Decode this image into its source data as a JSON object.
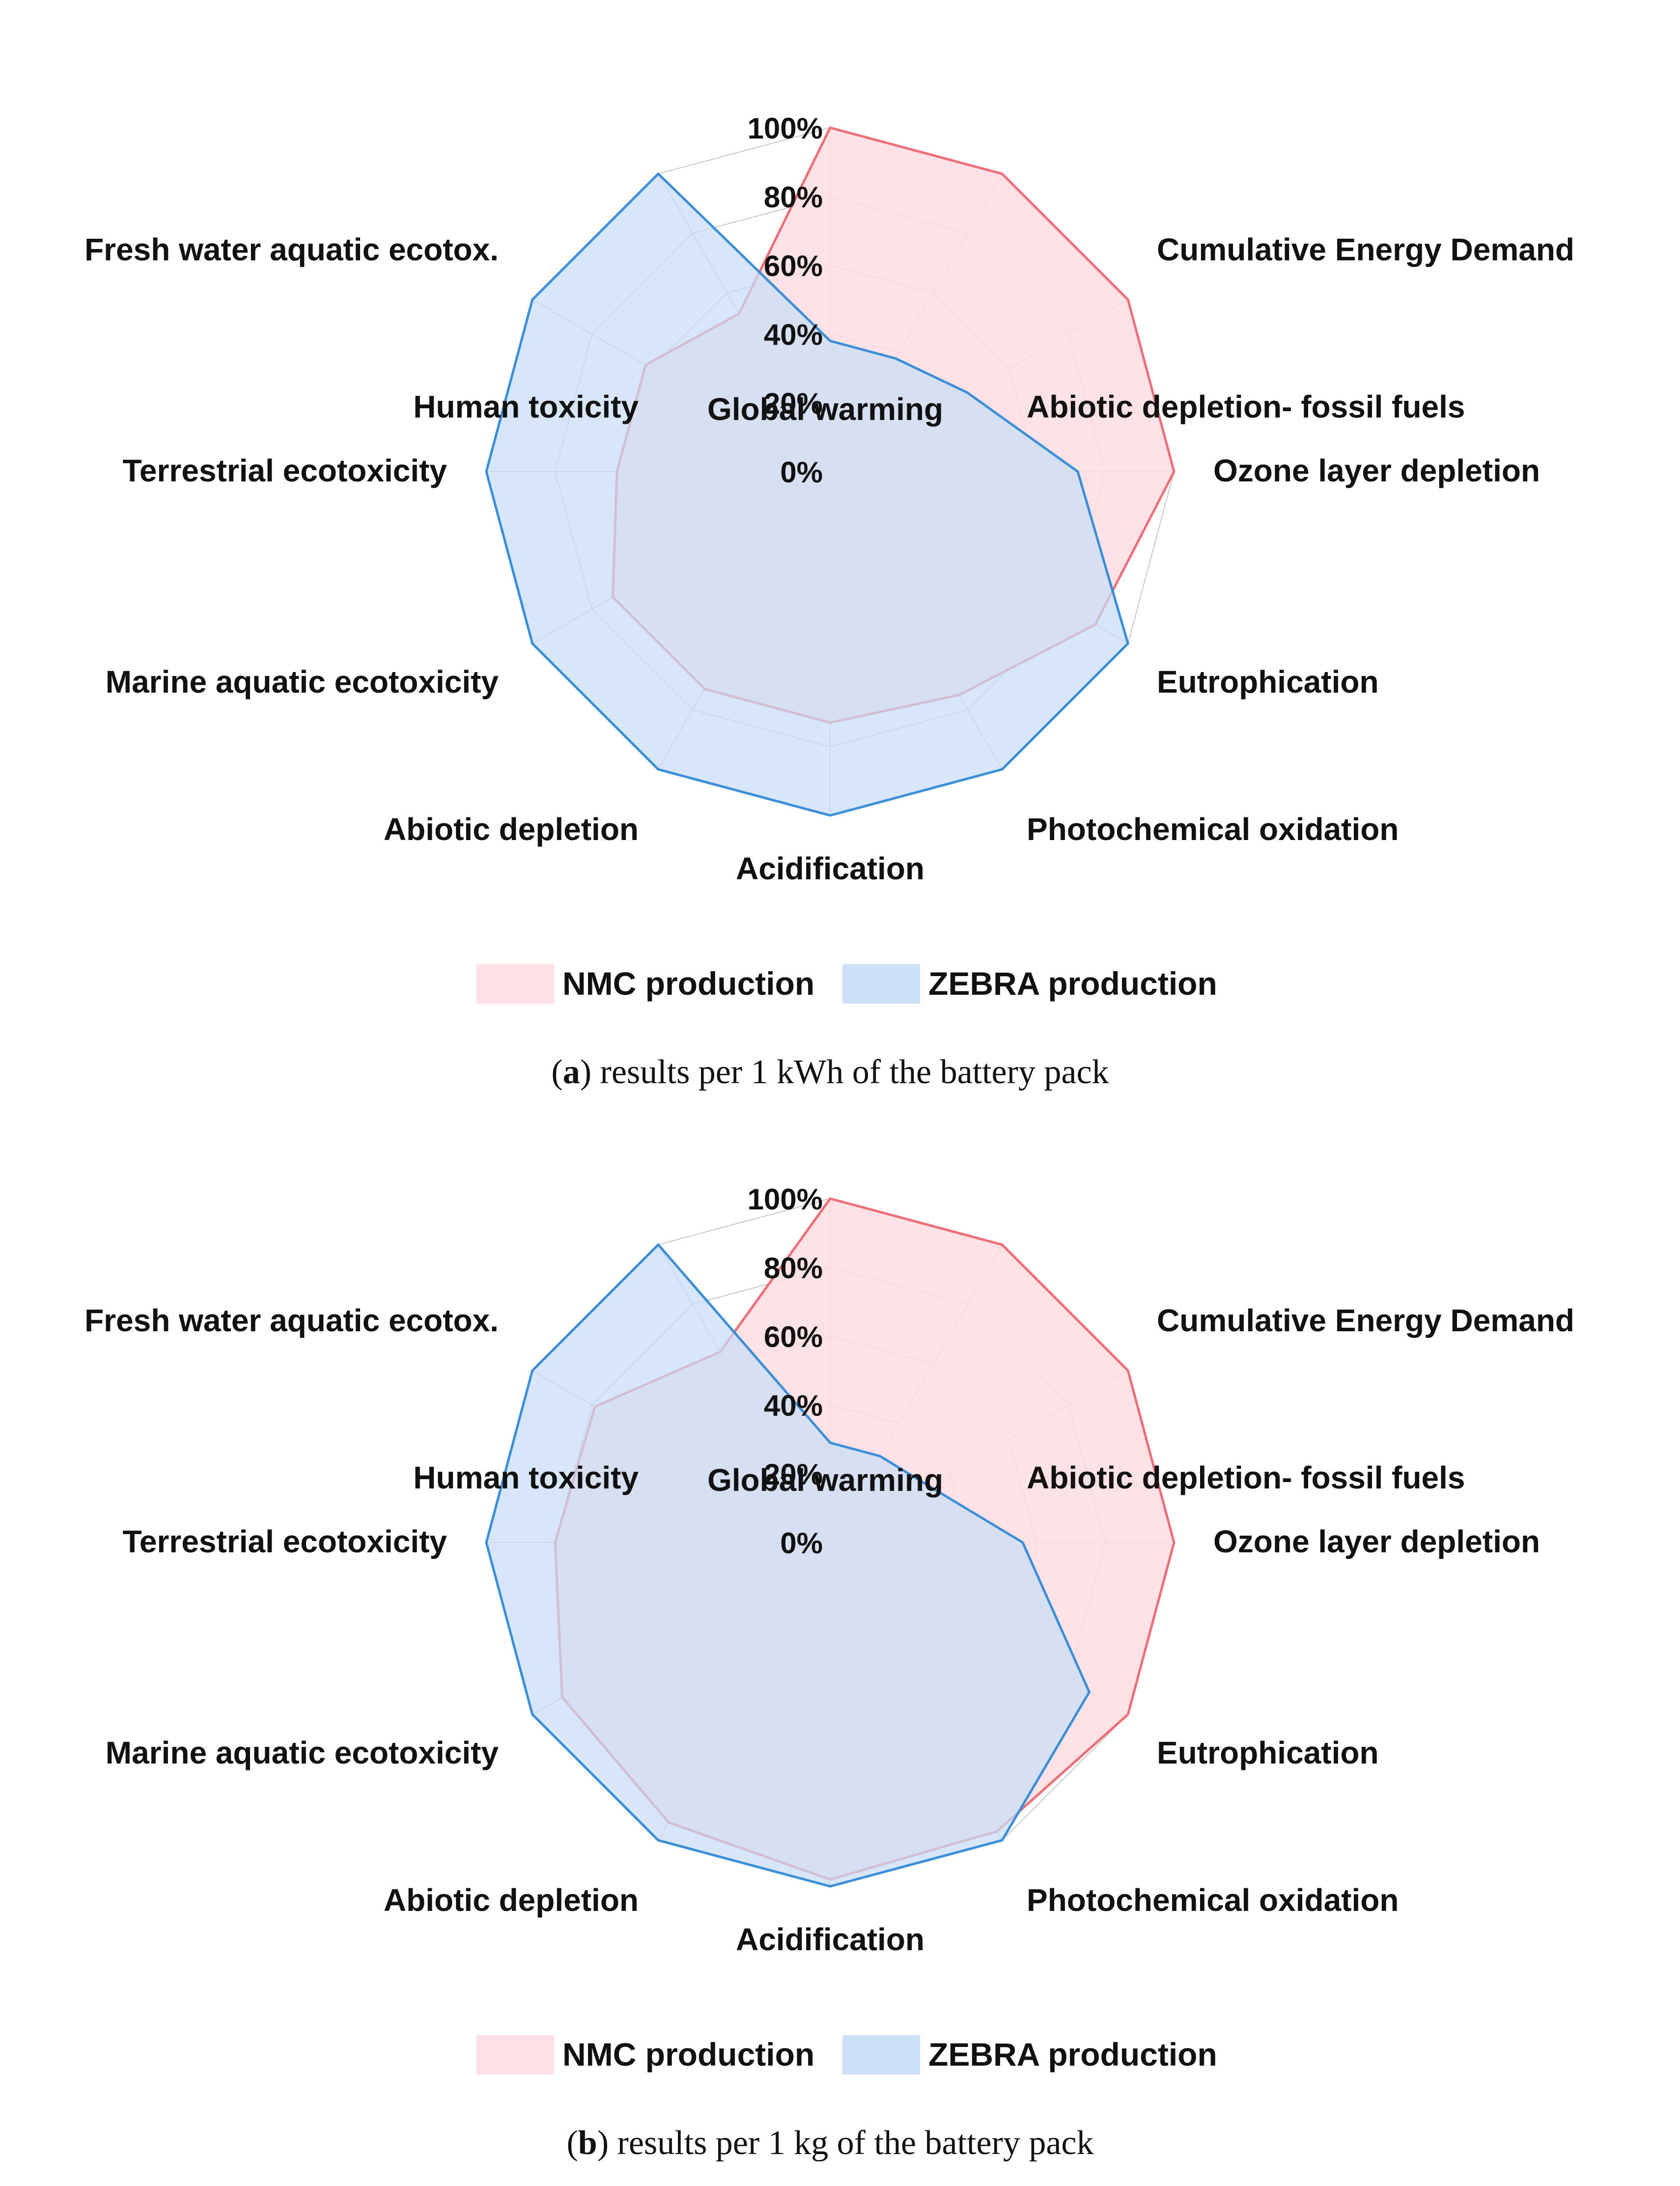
{
  "figure_title": "",
  "colors": {
    "nmc_line": "#ee6f78",
    "nmc_fill": "#ffdde2",
    "zebra_line": "#3b8fd9",
    "zebra_fill": "#c7def7",
    "grid": "#c8c8c8"
  },
  "chart_data": [
    {
      "type": "radar",
      "caption_letter": "a",
      "caption_text": "results per 1 kWh of the battery pack",
      "categories": [
        "Global warming",
        "Abiotic depletion- fossil fuels",
        "Cumulative Energy Demand",
        "Ozone layer depletion",
        "Eutrophication",
        "Photochemical oxidation",
        "Acidification",
        "Abiotic depletion",
        "Marine aquatic ecotoxicity",
        "Terrestrial ecotoxicity",
        "Fresh water aquatic ecotox.",
        "Human toxicity"
      ],
      "radial_ticks": [
        "0%",
        "20%",
        "40%",
        "60%",
        "80%",
        "100%"
      ],
      "rlim": [
        0,
        100
      ],
      "series": [
        {
          "name": "NMC production",
          "values": [
            100,
            100,
            100,
            100,
            89,
            75,
            73,
            73,
            73,
            62,
            62,
            53
          ]
        },
        {
          "name": "ZEBRA production",
          "values": [
            38,
            38,
            46,
            72,
            100,
            100,
            100,
            100,
            100,
            100,
            100,
            100
          ]
        }
      ],
      "legend": [
        "NMC production",
        "ZEBRA production"
      ],
      "legend_position": "bottom"
    },
    {
      "type": "radar",
      "caption_letter": "b",
      "caption_text": "results per 1 kg of the battery pack",
      "categories": [
        "Global warming",
        "Abiotic depletion- fossil fuels",
        "Cumulative Energy Demand",
        "Ozone layer depletion",
        "Eutrophication",
        "Photochemical oxidation",
        "Acidification",
        "Abiotic depletion",
        "Marine aquatic ecotoxicity",
        "Terrestrial ecotoxicity",
        "Fresh water aquatic ecotox.",
        "Human toxicity"
      ],
      "radial_ticks": [
        "0%",
        "20%",
        "40%",
        "60%",
        "80%",
        "100%"
      ],
      "rlim": [
        0,
        100
      ],
      "series": [
        {
          "name": "NMC production",
          "values": [
            100,
            100,
            100,
            100,
            100,
            97,
            98,
            94,
            90,
            80,
            79,
            64
          ]
        },
        {
          "name": "ZEBRA production",
          "values": [
            29,
            29,
            33,
            56,
            87,
            100,
            100,
            100,
            100,
            100,
            100,
            100
          ]
        }
      ],
      "legend": [
        "NMC production",
        "ZEBRA production"
      ],
      "legend_position": "bottom"
    }
  ]
}
